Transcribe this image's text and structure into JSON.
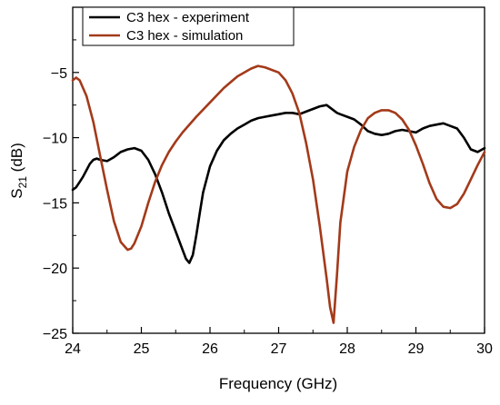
{
  "chart_data": {
    "type": "line",
    "title": "",
    "xlabel": "Frequency (GHz)",
    "ylabel_main": "S",
    "ylabel_sub": "21",
    "ylabel_unit": " (dB)",
    "xlim": [
      24,
      30
    ],
    "ylim": [
      -25,
      0
    ],
    "xticks": [
      24,
      25,
      26,
      27,
      28,
      29,
      30
    ],
    "yticks": [
      -5,
      -10,
      -15,
      -20,
      -25
    ],
    "xtick_labels": [
      "24",
      "25",
      "26",
      "27",
      "28",
      "29",
      "30"
    ],
    "ytick_labels": [
      "−5",
      "−10",
      "−15",
      "−20",
      "−25"
    ],
    "legend_position": "top-left",
    "grid": false,
    "series": [
      {
        "name": "C3 hex - experiment",
        "color": "#000000",
        "x": [
          24.0,
          24.05,
          24.1,
          24.15,
          24.2,
          24.25,
          24.3,
          24.35,
          24.4,
          24.5,
          24.6,
          24.7,
          24.8,
          24.9,
          25.0,
          25.1,
          25.2,
          25.3,
          25.4,
          25.5,
          25.6,
          25.65,
          25.7,
          25.75,
          25.8,
          25.85,
          25.9,
          26.0,
          26.1,
          26.2,
          26.3,
          26.4,
          26.5,
          26.6,
          26.7,
          26.8,
          26.9,
          27.0,
          27.1,
          27.2,
          27.3,
          27.4,
          27.5,
          27.6,
          27.7,
          27.8,
          27.85,
          27.9,
          28.0,
          28.1,
          28.2,
          28.3,
          28.4,
          28.5,
          28.6,
          28.7,
          28.8,
          28.9,
          29.0,
          29.1,
          29.2,
          29.3,
          29.4,
          29.5,
          29.6,
          29.7,
          29.8,
          29.9,
          30.0
        ],
        "y": [
          -14.0,
          -13.8,
          -13.4,
          -13.0,
          -12.5,
          -12.0,
          -11.7,
          -11.6,
          -11.7,
          -11.8,
          -11.5,
          -11.1,
          -10.9,
          -10.8,
          -11.0,
          -11.7,
          -12.8,
          -14.2,
          -15.8,
          -17.2,
          -18.6,
          -19.3,
          -19.6,
          -19.0,
          -17.5,
          -15.8,
          -14.2,
          -12.2,
          -11.0,
          -10.2,
          -9.7,
          -9.3,
          -9.0,
          -8.7,
          -8.5,
          -8.4,
          -8.3,
          -8.2,
          -8.1,
          -8.1,
          -8.2,
          -8.0,
          -7.8,
          -7.6,
          -7.5,
          -7.9,
          -8.1,
          -8.2,
          -8.4,
          -8.6,
          -9.0,
          -9.5,
          -9.7,
          -9.8,
          -9.7,
          -9.5,
          -9.4,
          -9.5,
          -9.6,
          -9.3,
          -9.1,
          -9.0,
          -8.9,
          -9.1,
          -9.3,
          -10.0,
          -10.9,
          -11.1,
          -10.8
        ]
      },
      {
        "name": "C3 hex - simulation",
        "color": "#a33a1a",
        "x": [
          24.0,
          24.05,
          24.1,
          24.2,
          24.3,
          24.4,
          24.5,
          24.6,
          24.7,
          24.8,
          24.85,
          24.9,
          25.0,
          25.1,
          25.2,
          25.3,
          25.4,
          25.5,
          25.6,
          25.8,
          26.0,
          26.2,
          26.4,
          26.6,
          26.7,
          26.8,
          27.0,
          27.1,
          27.2,
          27.3,
          27.4,
          27.5,
          27.6,
          27.7,
          27.75,
          27.8,
          27.85,
          27.9,
          28.0,
          28.1,
          28.2,
          28.3,
          28.4,
          28.5,
          28.6,
          28.7,
          28.8,
          28.9,
          29.0,
          29.1,
          29.2,
          29.3,
          29.4,
          29.5,
          29.6,
          29.7,
          29.8,
          29.9,
          30.0
        ],
        "y": [
          -5.6,
          -5.4,
          -5.6,
          -6.8,
          -8.8,
          -11.4,
          -14.0,
          -16.4,
          -18.0,
          -18.6,
          -18.5,
          -18.1,
          -16.8,
          -15.0,
          -13.4,
          -12.1,
          -11.1,
          -10.3,
          -9.6,
          -8.4,
          -7.3,
          -6.2,
          -5.3,
          -4.7,
          -4.5,
          -4.6,
          -5.0,
          -5.6,
          -6.6,
          -8.1,
          -10.4,
          -13.2,
          -16.8,
          -20.8,
          -23.0,
          -24.2,
          -20.5,
          -16.5,
          -12.6,
          -10.7,
          -9.4,
          -8.5,
          -8.1,
          -7.9,
          -7.9,
          -8.1,
          -8.6,
          -9.4,
          -10.6,
          -12.0,
          -13.5,
          -14.7,
          -15.3,
          -15.4,
          -15.1,
          -14.3,
          -13.2,
          -12.1,
          -11.1
        ]
      }
    ]
  }
}
